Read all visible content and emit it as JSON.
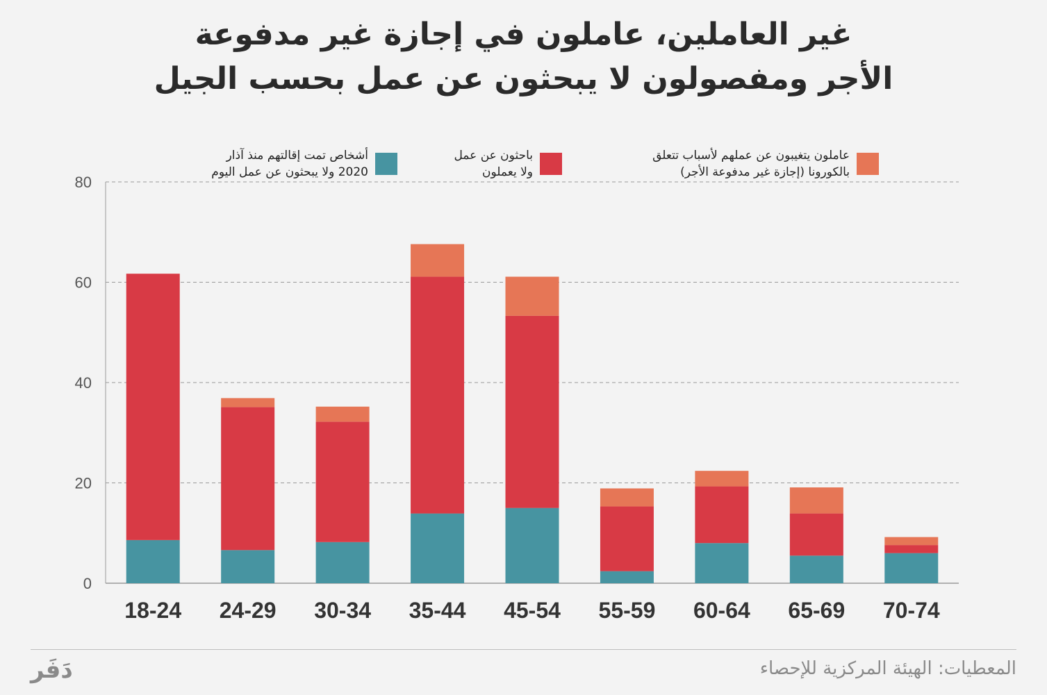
{
  "title": {
    "line1": "غير العاملين، عاملون في إجازة غير مدفوعة",
    "line2": "الأجر ومفصولون لا يبحثون عن عمل بحسب الجيل"
  },
  "colors": {
    "fired": "#4794a1",
    "searching": "#d83a45",
    "leave": "#e67656"
  },
  "legend": [
    {
      "key": "leave",
      "line1": "عاملون يتغيبون عن عملهم لأسباب تتعلق",
      "line2": "بالكورونا (إجازة غير مدفوعة الأجر)"
    },
    {
      "key": "searching",
      "line1": "باحثون عن عمل",
      "line2": "ولا يعملون"
    },
    {
      "key": "fired",
      "line1": "أشخاص تمت إقالتهم منذ آذار",
      "line2": "2020 ولا يبحثون عن عمل اليوم"
    }
  ],
  "chart_data": {
    "type": "bar",
    "stacked": true,
    "categories": [
      "18-24",
      "24-29",
      "30-34",
      "35-44",
      "45-54",
      "55-59",
      "60-64",
      "65-69",
      "70-74"
    ],
    "series": [
      {
        "name": "أشخاص تمت إقالتهم منذ آذار 2020 ولا يبحثون عن عمل اليوم",
        "key": "fired",
        "values": [
          8.6,
          6.6,
          8.2,
          13.9,
          15.0,
          2.4,
          8.0,
          5.5,
          6.0
        ]
      },
      {
        "name": "باحثون عن عمل ولا يعملون",
        "key": "searching",
        "values": [
          53.1,
          28.5,
          24.0,
          47.2,
          38.3,
          12.9,
          11.3,
          8.4,
          1.6
        ]
      },
      {
        "name": "عاملون يتغيبون عن عملهم لأسباب تتعلق بالكورونا (إجازة غير مدفوعة الأجر)",
        "key": "leave",
        "values": [
          0,
          1.8,
          3.0,
          6.5,
          7.8,
          3.6,
          3.1,
          5.2,
          1.6
        ]
      }
    ],
    "ylim": [
      0,
      80
    ],
    "yticks": [
      "0",
      "20",
      "40",
      "60",
      "80"
    ],
    "grid": true
  },
  "footer": {
    "source": "المعطيات: الهيئة المركزية للإحصاء",
    "logo": "دَفَر"
  }
}
